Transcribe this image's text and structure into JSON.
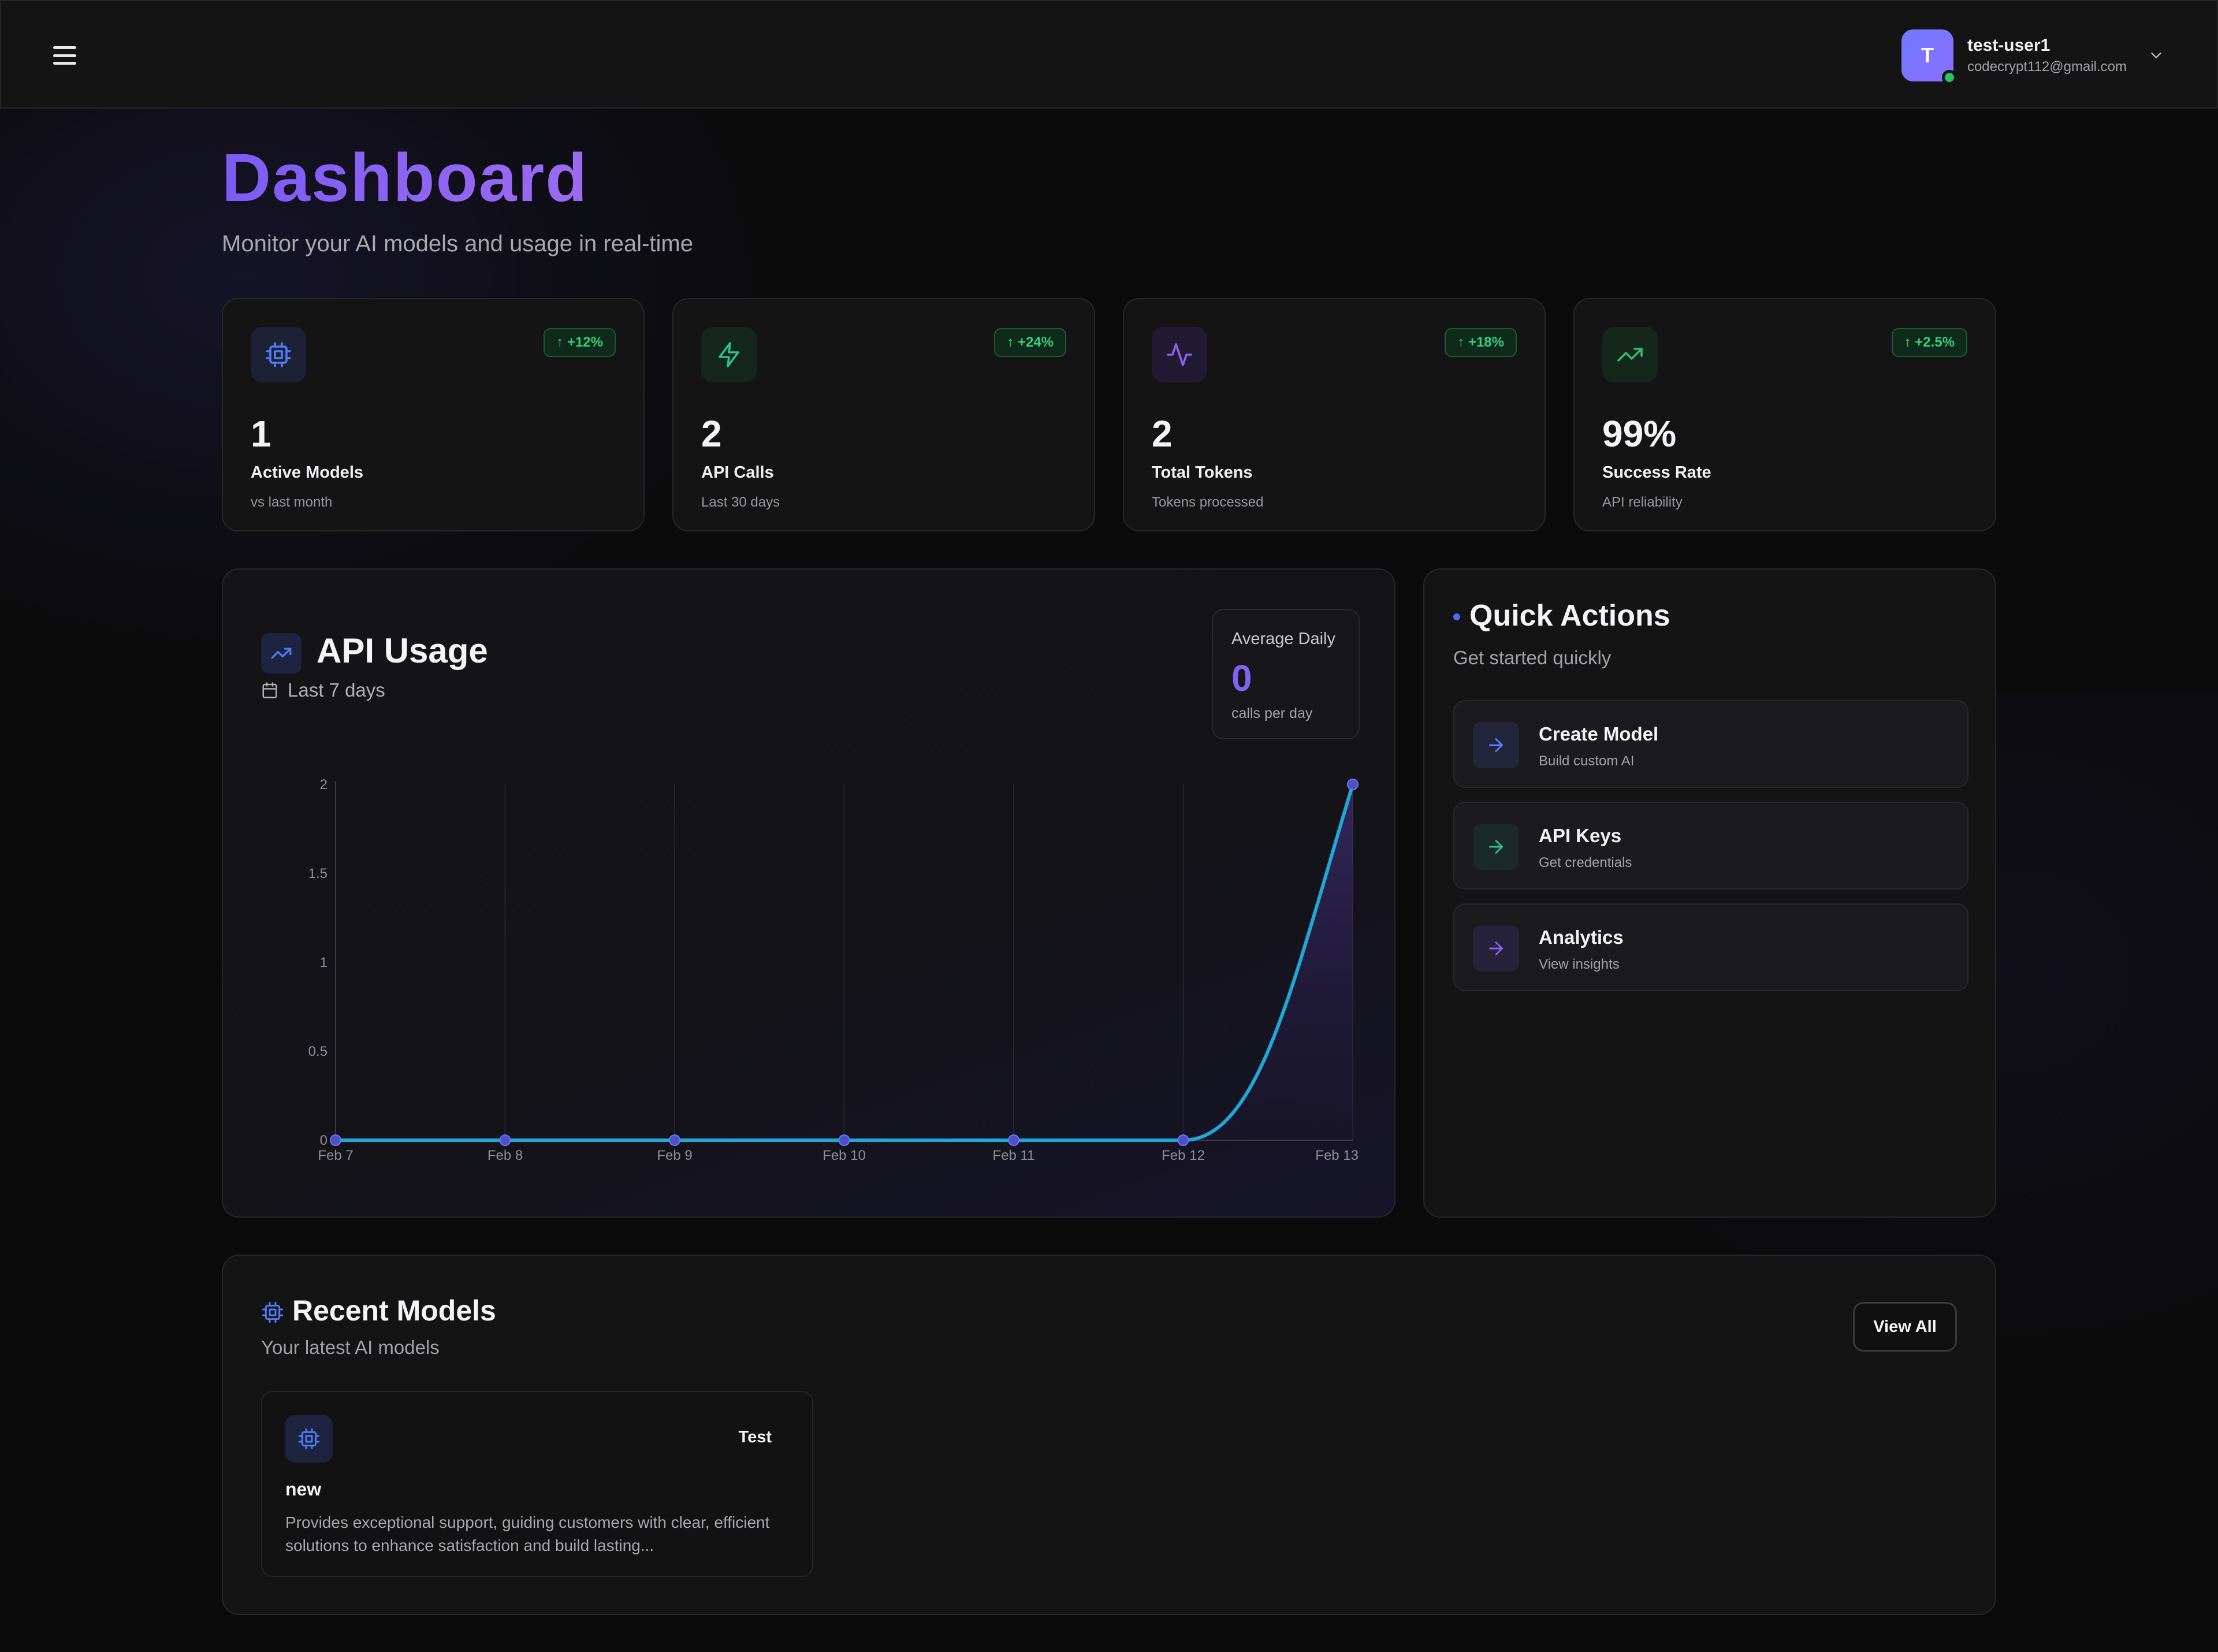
{
  "header": {
    "user": {
      "initial": "T",
      "name": "test-user1",
      "email": "codecrypt112@gmail.com"
    }
  },
  "page": {
    "title": "Dashboard",
    "subtitle": "Monitor your AI models and usage in real-time"
  },
  "stats": [
    {
      "icon": "cpu-icon",
      "badge": "+12%",
      "value": "1",
      "label": "Active Models",
      "sub": "vs last month",
      "accent": "#4f7df5",
      "icon_bg": "#1c2135"
    },
    {
      "icon": "lightning-icon",
      "badge": "+24%",
      "value": "2",
      "label": "API Calls",
      "sub": "Last 30 days",
      "accent": "#2fbf8a",
      "icon_bg": "#15261f"
    },
    {
      "icon": "activity-icon",
      "badge": "+18%",
      "value": "2",
      "label": "Total Tokens",
      "sub": "Tokens processed",
      "accent": "#8f5ff0",
      "icon_bg": "#211a33"
    },
    {
      "icon": "trending-up-icon",
      "badge": "+2.5%",
      "value": "99%",
      "label": "Success Rate",
      "sub": "API reliability",
      "accent": "#2fbf6a",
      "icon_bg": "#15261b"
    }
  ],
  "usage": {
    "title": "API Usage",
    "range": "Last 7 days",
    "average": {
      "label": "Average Daily",
      "value": "0",
      "unit": "calls per day"
    }
  },
  "chart_data": {
    "type": "line",
    "x": [
      "Feb 7",
      "Feb 8",
      "Feb 9",
      "Feb 10",
      "Feb 11",
      "Feb 12",
      "Feb 13"
    ],
    "series": [
      {
        "values": [
          0,
          0,
          0,
          0,
          0,
          0,
          2
        ]
      }
    ],
    "ylim": [
      0,
      2
    ],
    "yticks": [
      "0",
      "0.5",
      "1",
      "1.5",
      "2"
    ],
    "grid": true,
    "line_color": "#1fa7d8",
    "marker_color": "#4a52c9"
  },
  "quick_actions": {
    "title": "Quick Actions",
    "subtitle": "Get started quickly",
    "items": [
      {
        "title": "Create Model",
        "sub": "Build custom AI",
        "accent": "#5a7cf5",
        "icon_bg": "#23253a"
      },
      {
        "title": "API Keys",
        "sub": "Get credentials",
        "accent": "#2fbf8a",
        "icon_bg": "#1b2a27"
      },
      {
        "title": "Analytics",
        "sub": "View insights",
        "accent": "#8f5ff0",
        "icon_bg": "#25223a"
      }
    ]
  },
  "recent": {
    "title": "Recent Models",
    "subtitle": "Your latest AI models",
    "view_all": "View All",
    "models": [
      {
        "tag": "Test",
        "name": "new",
        "description": "Provides exceptional support, guiding customers with clear, efficient solutions to enhance satisfaction and build lasting..."
      }
    ]
  }
}
